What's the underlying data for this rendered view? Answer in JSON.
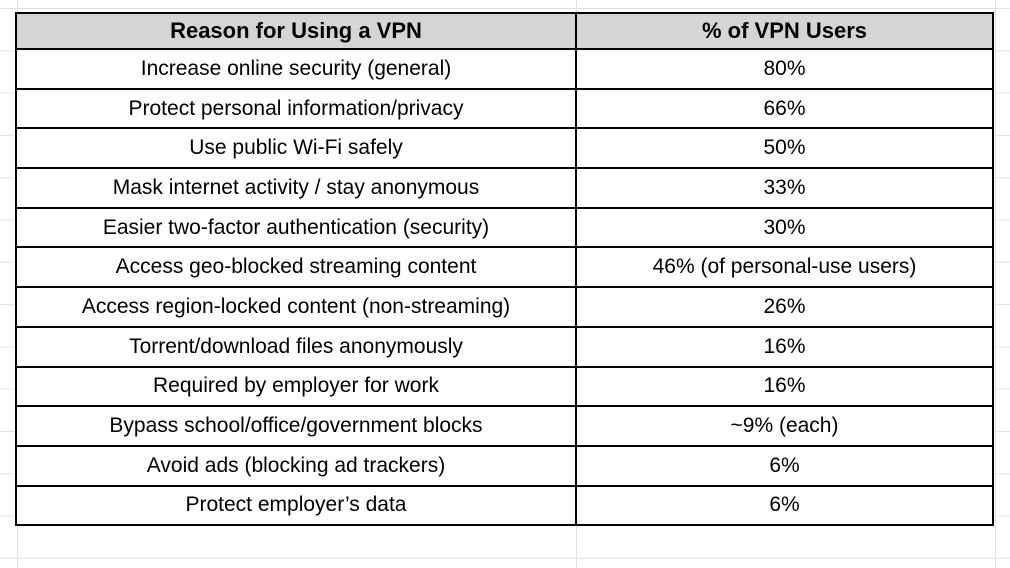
{
  "app": {
    "type": "spreadsheet-grid"
  },
  "colors": {
    "table_border": "#000000",
    "header_fill": "#d5d5d5",
    "gridline": "#e2e2e2",
    "cell_background": "#ffffff",
    "text": "#000000"
  },
  "table": {
    "columns": [
      {
        "label": "Reason for Using a VPN"
      },
      {
        "label": "% of VPN Users"
      }
    ],
    "rows": [
      {
        "reason": "Increase online security (general)",
        "value": "80%"
      },
      {
        "reason": "Protect personal information/privacy",
        "value": "66%"
      },
      {
        "reason": "Use public Wi-Fi safely",
        "value": "50%"
      },
      {
        "reason": "Mask internet activity / stay anonymous",
        "value": "33%"
      },
      {
        "reason": "Easier two-factor authentication (security)",
        "value": "30%"
      },
      {
        "reason": "Access geo-blocked streaming content",
        "value": "46% (of personal-use users)"
      },
      {
        "reason": "Access region-locked content (non-streaming)",
        "value": "26%"
      },
      {
        "reason": "Torrent/download files anonymously",
        "value": "16%"
      },
      {
        "reason": "Required by employer for work",
        "value": "16%"
      },
      {
        "reason": "Bypass school/office/government blocks",
        "value": "~9% (each)"
      },
      {
        "reason": "Avoid ads (blocking ad trackers)",
        "value": "6%"
      },
      {
        "reason": "Protect employer’s data",
        "value": "6%"
      }
    ]
  }
}
